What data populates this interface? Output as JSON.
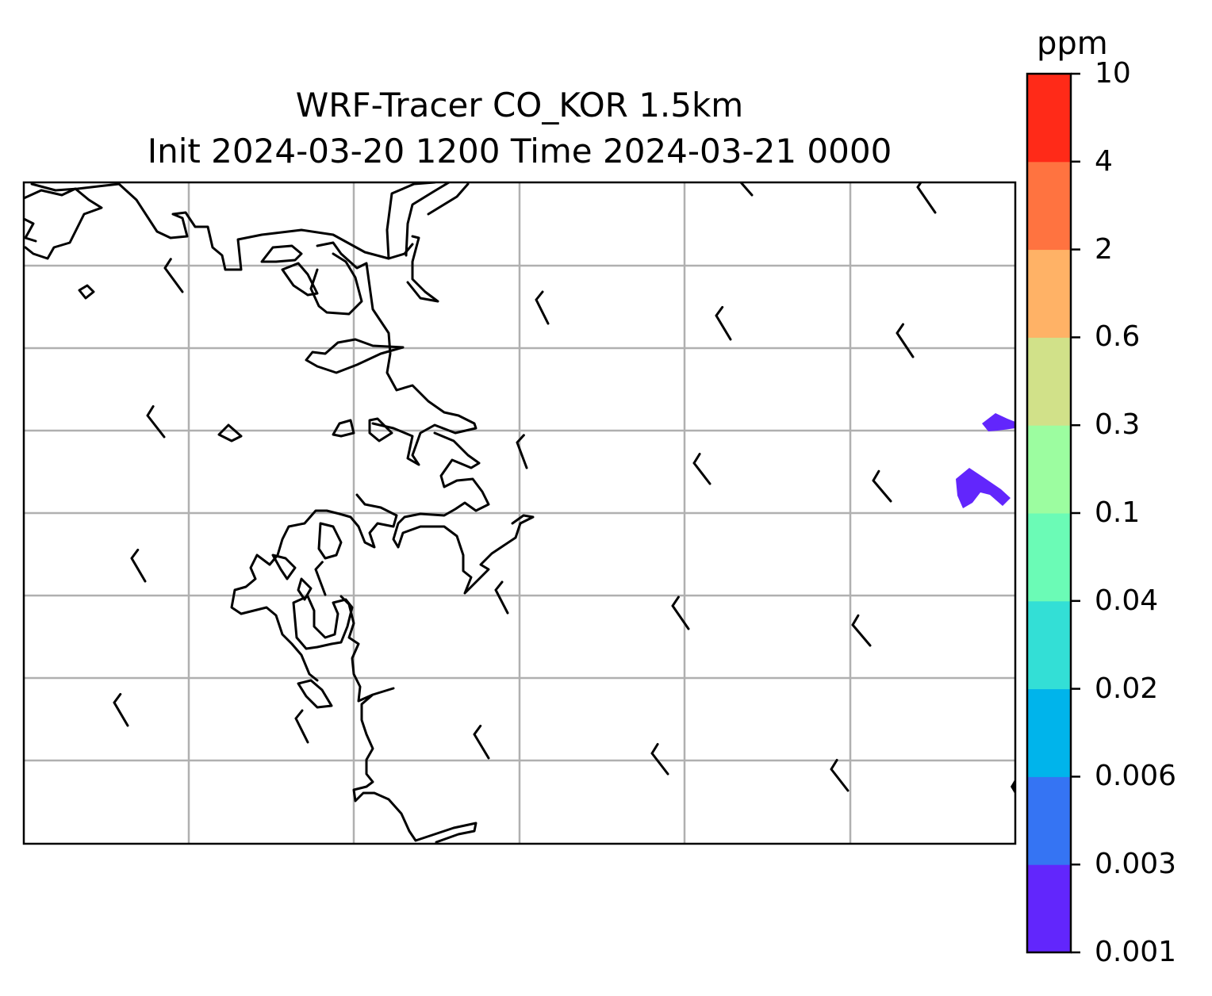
{
  "title": {
    "line1": "WRF-Tracer CO_KOR 1.5km",
    "line2": "Init 2024-03-20 1200 Time 2024-03-21 0000"
  },
  "colorbar": {
    "unit": "ppm",
    "levels": [
      "0.001",
      "0.003",
      "0.006",
      "0.02",
      "0.04",
      "0.1",
      "0.3",
      "0.6",
      "2",
      "4",
      "10"
    ],
    "colors": [
      "#6226fc",
      "#3574f3",
      "#00b4eb",
      "#33dfd6",
      "#6bfbb6",
      "#9cfda0",
      "#d1e189",
      "#ffb266",
      "#ff7340",
      "#ff2a18"
    ]
  },
  "map": {
    "gridlines": true,
    "grid_color": "#b0b0b0",
    "coastline_color": "#000000",
    "plume_color": "#6226fc",
    "plume_level": "0.001–0.003 ppm",
    "wind_barbs": "short-barb"
  }
}
